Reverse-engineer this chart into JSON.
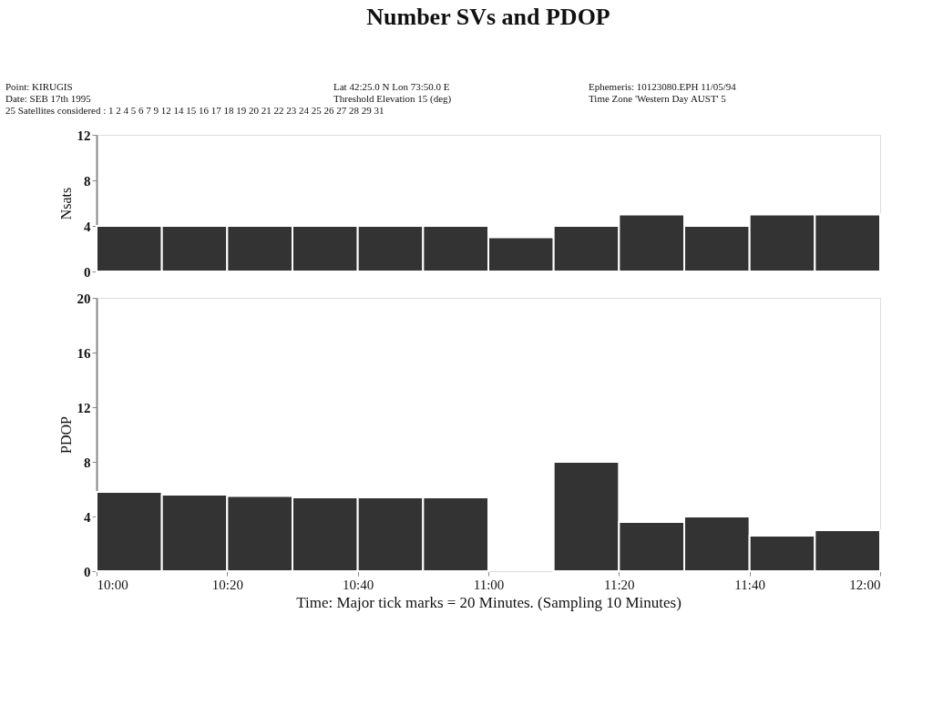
{
  "chart_data": [
    {
      "type": "bar",
      "title": "Number SVs and PDOP",
      "ylabel": "Nsats",
      "annotations": [
        "Point: KIRUGIS",
        "Lat 42:25.0 N  Lon 73:50.0 E",
        "Ephemeris: 10123080.EPH 11/05/94",
        "Date: SEB 17th 1995",
        "Threshold Elevation 15 (deg)",
        "Time Zone 'Western Day AUST' 5",
        "25 Satellites considered : 1 2 4 5 6 7 9 12 14 15 16 17 18 19 20 21 22 23 24 25 26 27 28 29 31"
      ],
      "x": [
        10.0833,
        10.25,
        10.4167,
        10.5833,
        10.75,
        10.9167,
        11.0833,
        11.25,
        11.4167,
        11.5833,
        11.75,
        11.9167
      ],
      "values": [
        4,
        4,
        4,
        4,
        4,
        4,
        3,
        4,
        5,
        4,
        5,
        5
      ],
      "color": "#333333",
      "xlim": [
        10,
        12
      ],
      "ylim": [
        0,
        12
      ],
      "yticks": [
        0,
        4,
        8,
        12
      ],
      "tick_labels": "y",
      "grid": false
    },
    {
      "type": "bar",
      "ylabel": "PDOP",
      "xlabel": "Time: Major tick marks = 20 Minutes. (Sampling 10 Minutes)",
      "x": [
        10.0833,
        10.25,
        10.4167,
        10.5833,
        10.75,
        10.9167,
        11.0833,
        11.25,
        11.4167,
        11.5833,
        11.75,
        11.9167
      ],
      "values": [
        5.8,
        5.6,
        5.5,
        5.4,
        5.4,
        5.4,
        null,
        8,
        3.6,
        4,
        2.6,
        3
      ],
      "color": "#333333",
      "xlim": [
        10,
        12
      ],
      "ylim": [
        0,
        20
      ],
      "yticks": [
        0,
        4,
        8,
        12,
        16,
        20
      ],
      "xticks": [
        {
          "value": 10,
          "label": "10:00"
        },
        {
          "value": 10.3333,
          "label": "10:20"
        },
        {
          "value": 10.6667,
          "label": "10:40"
        },
        {
          "value": 11,
          "label": "11:00"
        },
        {
          "value": 11.3333,
          "label": "11:20"
        },
        {
          "value": 11.6667,
          "label": "11:40"
        },
        {
          "value": 12,
          "label": "12:00"
        }
      ],
      "grid": false
    }
  ]
}
